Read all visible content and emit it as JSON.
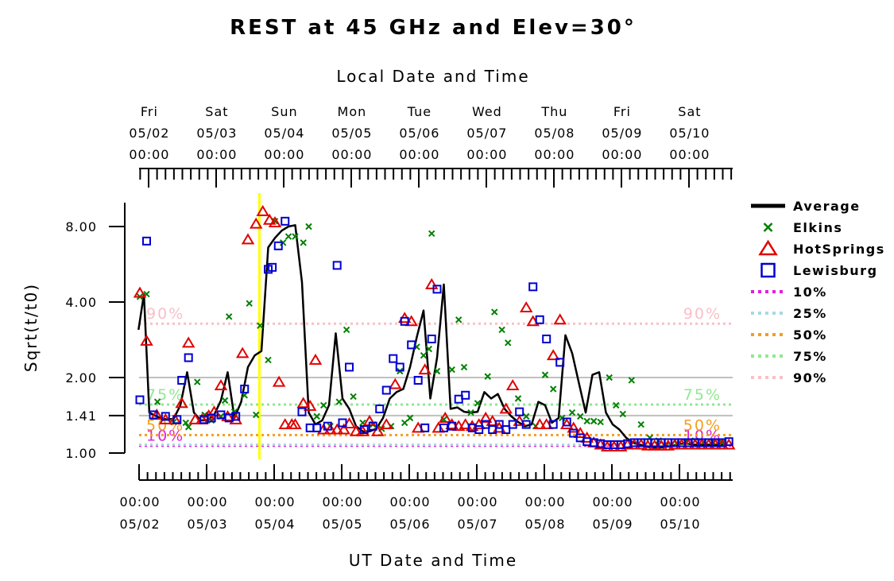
{
  "chart_data": {
    "type": "line",
    "title": "REST at 45 GHz and Elev=30°",
    "top_axis_label": "Local Date and Time",
    "xlabel": "UT Date and Time",
    "ylabel": "Sqrt(t/t0)",
    "y_scale": "log",
    "ylim": [
      1.0,
      10.0
    ],
    "y_ticks": [
      {
        "value": 1.0,
        "label": "1.00"
      },
      {
        "value": 1.41,
        "label": "1.41"
      },
      {
        "value": 2.0,
        "label": "2.00"
      },
      {
        "value": 4.0,
        "label": "4.00"
      },
      {
        "value": 8.0,
        "label": "8.00"
      }
    ],
    "x_unit": "days since 05/02 00:00 UT",
    "xlim": [
      -0.15,
      8.75
    ],
    "bottom_ticks": [
      {
        "x": 0,
        "line1": "00:00",
        "line2": "05/02"
      },
      {
        "x": 1,
        "line1": "00:00",
        "line2": "05/03"
      },
      {
        "x": 2,
        "line1": "00:00",
        "line2": "05/04"
      },
      {
        "x": 3,
        "line1": "00:00",
        "line2": "05/05"
      },
      {
        "x": 4,
        "line1": "00:00",
        "line2": "05/06"
      },
      {
        "x": 5,
        "line1": "00:00",
        "line2": "05/07"
      },
      {
        "x": 6,
        "line1": "00:00",
        "line2": "05/08"
      },
      {
        "x": 7,
        "line1": "00:00",
        "line2": "05/09"
      },
      {
        "x": 8,
        "line1": "00:00",
        "line2": "05/10"
      }
    ],
    "top_ticks": [
      {
        "x": 0.14,
        "day": "Fri",
        "date": "05/02",
        "time": "00:00"
      },
      {
        "x": 1.14,
        "day": "Sat",
        "date": "05/03",
        "time": "00:00"
      },
      {
        "x": 2.14,
        "day": "Sun",
        "date": "05/04",
        "time": "00:00"
      },
      {
        "x": 3.14,
        "day": "Mon",
        "date": "05/05",
        "time": "00:00"
      },
      {
        "x": 4.14,
        "day": "Tue",
        "date": "05/06",
        "time": "00:00"
      },
      {
        "x": 5.14,
        "day": "Wed",
        "date": "05/07",
        "time": "00:00"
      },
      {
        "x": 6.14,
        "day": "Thu",
        "date": "05/08",
        "time": "00:00"
      },
      {
        "x": 7.14,
        "day": "Fri",
        "date": "05/09",
        "time": "00:00"
      },
      {
        "x": 8.14,
        "day": "Sat",
        "date": "05/10",
        "time": "00:00"
      }
    ],
    "gray_lines": [
      1.41,
      2.0
    ],
    "now_marker_x": 1.77,
    "percentile_lines": [
      {
        "name": "10%",
        "value": 1.07,
        "color": "#e020e0"
      },
      {
        "name": "25%",
        "value": 1.08,
        "color": "#a8d8e0"
      },
      {
        "name": "50%",
        "value": 1.18,
        "color": "#f0a020"
      },
      {
        "name": "75%",
        "value": 1.56,
        "color": "#90e890"
      },
      {
        "name": "90%",
        "value": 3.28,
        "color": "#f8c0c8"
      }
    ],
    "series": [
      {
        "name": "Average",
        "marker": "line",
        "color": "#000000",
        "x": [
          -0.02,
          0.06,
          0.14,
          0.2,
          0.3,
          0.4,
          0.5,
          0.6,
          0.7,
          0.8,
          0.9,
          1.0,
          1.1,
          1.2,
          1.3,
          1.4,
          1.5,
          1.6,
          1.7,
          1.8,
          1.9,
          2.0,
          2.1,
          2.2,
          2.3,
          2.4,
          2.5,
          2.6,
          2.7,
          2.8,
          2.9,
          3.0,
          3.1,
          3.2,
          3.3,
          3.4,
          3.5,
          3.6,
          3.7,
          3.8,
          3.9,
          4.0,
          4.1,
          4.2,
          4.3,
          4.4,
          4.5,
          4.6,
          4.7,
          4.8,
          4.9,
          5.0,
          5.1,
          5.2,
          5.3,
          5.4,
          5.5,
          5.6,
          5.7,
          5.8,
          5.9,
          6.0,
          6.1,
          6.2,
          6.3,
          6.4,
          6.5,
          6.6,
          6.7,
          6.8,
          6.9,
          7.0,
          7.1,
          7.2,
          7.3,
          7.4,
          7.5,
          7.6,
          7.7,
          7.8,
          7.9,
          8.0,
          8.1,
          8.2,
          8.3,
          8.4,
          8.5,
          8.6,
          8.7
        ],
        "y": [
          3.1,
          4.3,
          1.45,
          1.42,
          1.38,
          1.36,
          1.37,
          1.55,
          2.1,
          1.45,
          1.35,
          1.35,
          1.42,
          1.62,
          2.1,
          1.38,
          1.6,
          2.2,
          2.45,
          2.55,
          6.6,
          7.2,
          7.7,
          8.0,
          8.1,
          4.8,
          1.45,
          1.3,
          1.35,
          1.55,
          3.0,
          1.65,
          1.5,
          1.28,
          1.22,
          1.22,
          1.25,
          1.38,
          1.65,
          1.75,
          1.8,
          2.2,
          2.9,
          3.7,
          1.65,
          2.4,
          4.7,
          1.5,
          1.52,
          1.46,
          1.45,
          1.46,
          1.75,
          1.65,
          1.72,
          1.5,
          1.4,
          1.33,
          1.28,
          1.3,
          1.6,
          1.55,
          1.32,
          1.38,
          2.95,
          2.5,
          1.9,
          1.45,
          2.05,
          2.1,
          1.45,
          1.3,
          1.24,
          1.15,
          1.1,
          1.08,
          1.06,
          1.05,
          1.05,
          1.06,
          1.07,
          1.09,
          1.09,
          1.08,
          1.08,
          1.08,
          1.08,
          1.08,
          1.09
        ]
      },
      {
        "name": "Elkins",
        "marker": "x",
        "color": "#008000",
        "x": [
          0.0,
          0.1,
          0.26,
          0.5,
          0.68,
          0.72,
          0.85,
          0.96,
          1.06,
          1.2,
          1.26,
          1.32,
          1.4,
          1.55,
          1.62,
          1.72,
          1.78,
          1.9,
          2.0,
          2.12,
          2.2,
          2.3,
          2.42,
          2.5,
          2.62,
          2.72,
          2.82,
          2.95,
          3.06,
          3.16,
          3.3,
          3.45,
          3.58,
          3.72,
          3.85,
          3.92,
          4.0,
          4.1,
          4.2,
          4.28,
          4.32,
          4.4,
          4.5,
          4.62,
          4.72,
          4.8,
          4.9,
          5.0,
          5.15,
          5.25,
          5.36,
          5.45,
          5.6,
          5.72,
          5.86,
          6.0,
          6.12,
          6.25,
          6.4,
          6.52,
          6.62,
          6.72,
          6.82,
          6.95,
          7.05,
          7.15,
          7.28,
          7.42,
          7.55,
          7.68,
          7.8,
          7.95,
          8.08,
          8.22,
          8.35,
          8.48,
          8.62
        ],
        "y": [
          4.2,
          4.3,
          1.6,
          1.33,
          1.32,
          1.27,
          1.92,
          1.42,
          1.35,
          1.4,
          1.62,
          3.5,
          1.46,
          1.7,
          3.95,
          1.42,
          3.22,
          2.35,
          8.4,
          6.9,
          7.3,
          7.3,
          6.9,
          8.0,
          1.4,
          1.55,
          1.28,
          1.6,
          3.1,
          1.68,
          1.32,
          1.3,
          1.25,
          1.28,
          2.12,
          1.32,
          1.38,
          2.65,
          2.45,
          2.6,
          7.5,
          2.12,
          1.36,
          2.15,
          3.4,
          2.2,
          1.45,
          1.58,
          2.02,
          3.65,
          3.1,
          2.75,
          1.65,
          1.4,
          1.28,
          2.05,
          1.8,
          1.38,
          1.45,
          1.4,
          1.34,
          1.34,
          1.33,
          2.0,
          1.55,
          1.43,
          1.95,
          1.3,
          1.15,
          1.12,
          1.08,
          1.09,
          1.11,
          1.12,
          1.11,
          1.11,
          1.1
        ]
      },
      {
        "name": "HotSprings",
        "marker": "triangle",
        "color": "#e00000",
        "x": [
          0.0,
          0.1,
          0.25,
          0.38,
          0.52,
          0.62,
          0.72,
          0.82,
          0.92,
          1.02,
          1.1,
          1.2,
          1.3,
          1.42,
          1.52,
          1.6,
          1.72,
          1.82,
          1.92,
          2.0,
          2.06,
          2.15,
          2.25,
          2.3,
          2.42,
          2.52,
          2.6,
          2.72,
          2.82,
          2.92,
          3.02,
          3.1,
          3.2,
          3.3,
          3.4,
          3.52,
          3.65,
          3.78,
          3.92,
          4.02,
          4.12,
          4.22,
          4.32,
          4.42,
          4.52,
          4.62,
          4.72,
          4.82,
          4.92,
          5.02,
          5.12,
          5.22,
          5.32,
          5.42,
          5.52,
          5.62,
          5.72,
          5.82,
          5.92,
          6.02,
          6.12,
          6.22,
          6.32,
          6.42,
          6.52,
          6.62,
          6.72,
          6.82,
          6.92,
          7.02,
          7.12,
          7.22,
          7.32,
          7.42,
          7.52,
          7.62,
          7.72,
          7.82,
          7.92,
          8.02,
          8.12,
          8.22,
          8.32,
          8.42,
          8.52,
          8.62,
          8.72
        ],
        "y": [
          4.35,
          2.8,
          1.42,
          1.36,
          1.36,
          1.58,
          2.75,
          1.36,
          1.36,
          1.41,
          1.46,
          1.86,
          1.4,
          1.36,
          2.5,
          7.1,
          8.2,
          9.2,
          8.5,
          8.3,
          1.92,
          1.3,
          1.3,
          1.3,
          1.58,
          1.54,
          2.35,
          1.24,
          1.24,
          1.24,
          1.24,
          1.31,
          1.22,
          1.22,
          1.34,
          1.22,
          1.3,
          1.88,
          3.45,
          3.35,
          1.26,
          2.15,
          4.7,
          1.26,
          1.38,
          1.3,
          1.28,
          1.3,
          1.28,
          1.3,
          1.38,
          1.34,
          1.26,
          1.5,
          1.86,
          1.34,
          3.8,
          3.35,
          1.3,
          1.3,
          2.45,
          3.4,
          1.3,
          1.26,
          1.2,
          1.15,
          1.1,
          1.08,
          1.06,
          1.06,
          1.06,
          1.08,
          1.08,
          1.08,
          1.07,
          1.07,
          1.07,
          1.07,
          1.08,
          1.08,
          1.08,
          1.08,
          1.08,
          1.08,
          1.08,
          1.08,
          1.08
        ]
      },
      {
        "name": "Lewisburg",
        "marker": "square",
        "color": "#0000d0",
        "x": [
          0.0,
          0.1,
          0.2,
          0.38,
          0.55,
          0.62,
          0.72,
          0.95,
          1.06,
          1.2,
          1.32,
          1.42,
          1.55,
          1.9,
          1.96,
          2.05,
          2.15,
          2.4,
          2.52,
          2.62,
          2.78,
          2.92,
          3.0,
          3.1,
          3.32,
          3.45,
          3.55,
          3.65,
          3.75,
          3.85,
          3.92,
          4.02,
          4.12,
          4.22,
          4.32,
          4.4,
          4.5,
          4.62,
          4.72,
          4.82,
          4.92,
          5.02,
          5.12,
          5.22,
          5.32,
          5.42,
          5.52,
          5.62,
          5.72,
          5.82,
          5.92,
          6.02,
          6.12,
          6.22,
          6.32,
          6.42,
          6.52,
          6.62,
          6.72,
          6.82,
          6.92,
          7.02,
          7.12,
          7.22,
          7.32,
          7.42,
          7.52,
          7.62,
          7.72,
          7.82,
          7.92,
          8.02,
          8.12,
          8.22,
          8.32,
          8.42,
          8.52,
          8.62,
          8.72
        ],
        "y": [
          1.63,
          7.0,
          1.42,
          1.4,
          1.36,
          1.95,
          2.4,
          1.36,
          1.38,
          1.42,
          1.38,
          1.4,
          1.8,
          5.4,
          5.5,
          6.7,
          8.4,
          1.46,
          1.26,
          1.26,
          1.28,
          5.6,
          1.32,
          2.2,
          1.24,
          1.28,
          1.5,
          1.78,
          2.38,
          2.2,
          3.35,
          2.7,
          1.95,
          1.26,
          2.85,
          4.5,
          1.26,
          1.28,
          1.64,
          1.7,
          1.26,
          1.24,
          1.3,
          1.24,
          1.3,
          1.24,
          1.3,
          1.46,
          1.3,
          4.6,
          3.4,
          2.85,
          1.3,
          2.3,
          1.33,
          1.2,
          1.15,
          1.11,
          1.1,
          1.09,
          1.08,
          1.08,
          1.08,
          1.09,
          1.1,
          1.1,
          1.1,
          1.1,
          1.1,
          1.1,
          1.1,
          1.1,
          1.1,
          1.1,
          1.1,
          1.1,
          1.1,
          1.1,
          1.11
        ]
      }
    ],
    "legend_position": "right"
  }
}
